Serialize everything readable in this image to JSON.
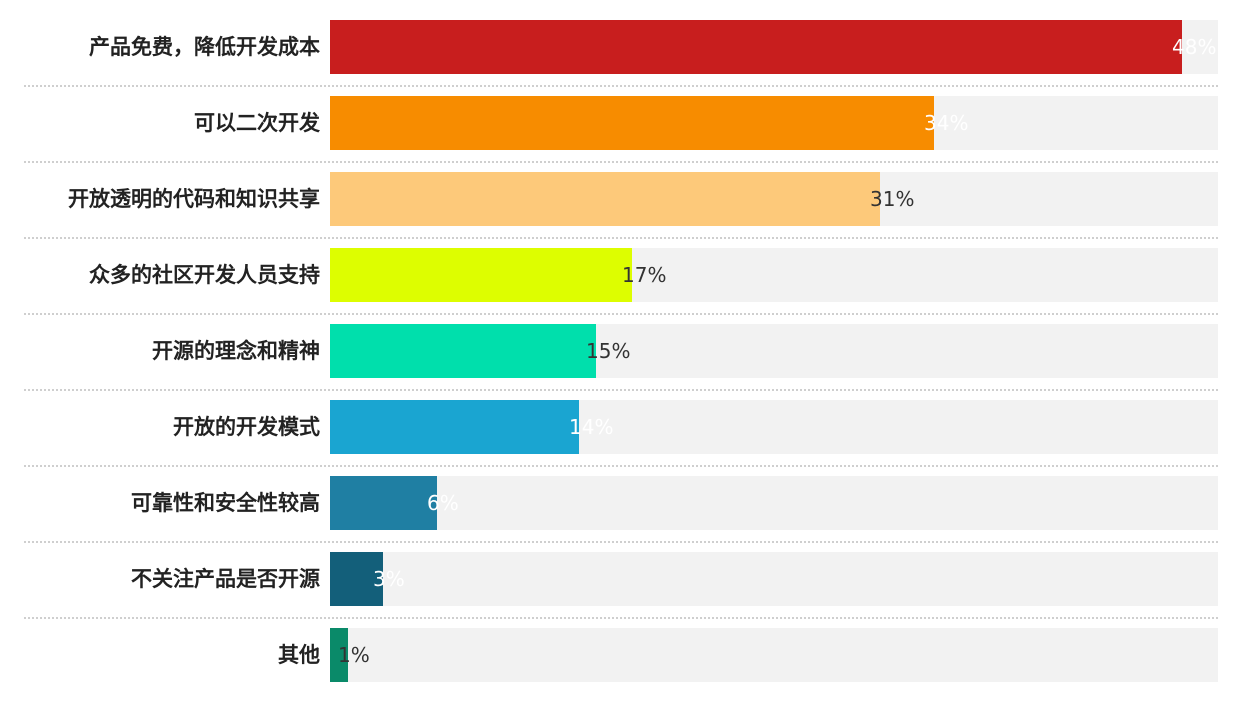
{
  "chart_data": {
    "type": "bar",
    "orientation": "horizontal",
    "title": "",
    "xlabel": "",
    "ylabel": "",
    "xlim": [
      0,
      50
    ],
    "grid": false,
    "legend": "none",
    "categories": [
      "产品免费，降低开发成本",
      "可以二次开发",
      "开放透明的代码和知识共享",
      "众多的社区开发人员支持",
      "开源的理念和精神",
      "开放的开发模式",
      "可靠性和安全性较高",
      "不关注产品是否开源",
      "其他"
    ],
    "values": [
      48,
      34,
      31,
      17,
      15,
      14,
      6,
      3,
      1
    ],
    "value_labels": [
      "48%",
      "34%",
      "31%",
      "17%",
      "15%",
      "14%",
      "6%",
      "3%",
      "1%"
    ],
    "colors": [
      "#c81e1e",
      "#f78c00",
      "#fdc97a",
      "#ddfe00",
      "#00dfac",
      "#1aa5d1",
      "#1f7fa3",
      "#135f7a",
      "#0a8a69"
    ],
    "label_colors": [
      "#ffffff",
      "#ffffff",
      "#333333",
      "#333333",
      "#333333",
      "#ffffff",
      "#ffffff",
      "#ffffff",
      "#333333"
    ],
    "track_color": "#f2f2f2"
  }
}
